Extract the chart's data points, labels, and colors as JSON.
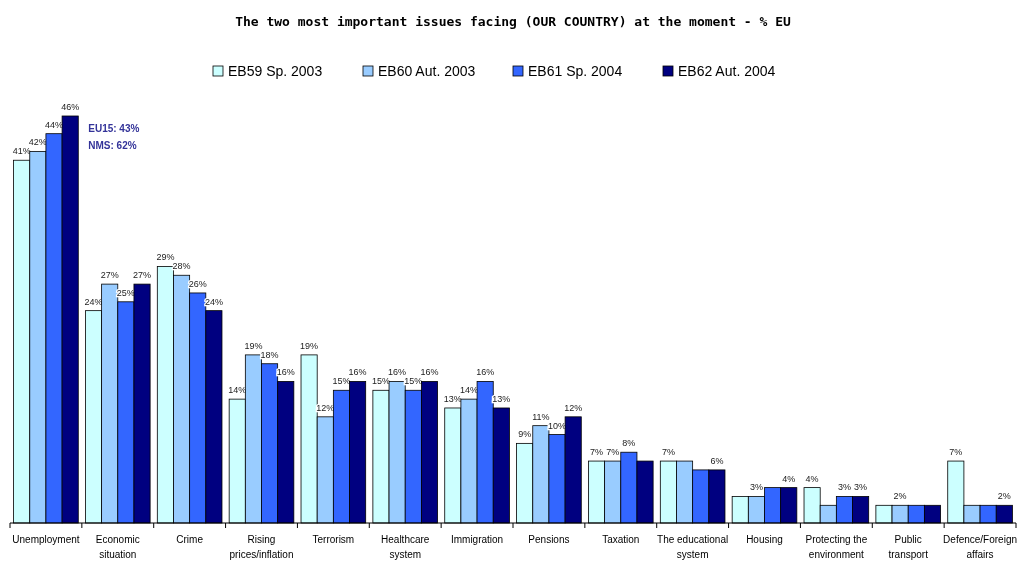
{
  "chart_data": {
    "type": "bar",
    "title": "The two most important issues facing (OUR COUNTRY) at the moment - % EU",
    "categories": [
      "Unemployment",
      "Economic situation",
      "Crime",
      "Rising prices/inflation",
      "Terrorism",
      "Healthcare system",
      "Immigration",
      "Pensions",
      "Taxation",
      "The educational system",
      "Housing",
      "Protecting the environment",
      "Public transport",
      "Defence/Foreign affairs"
    ],
    "series": [
      {
        "name": "EB59 Sp. 2003",
        "color": "#ccffff",
        "values": [
          41,
          24,
          29,
          14,
          19,
          15,
          13,
          9,
          7,
          7,
          3,
          4,
          2,
          7
        ],
        "value_labels": [
          "41%",
          "24%",
          "29%",
          "14%",
          "19%",
          "15%",
          "13%",
          "9%",
          "7%",
          "7%",
          null,
          "4%",
          null,
          "7%"
        ]
      },
      {
        "name": "EB60 Aut. 2003",
        "color": "#99ccff",
        "values": [
          42,
          27,
          28,
          19,
          12,
          16,
          14,
          11,
          7,
          7,
          3,
          2,
          2,
          2
        ],
        "value_labels": [
          "42%",
          "27%",
          "28%",
          "19%",
          "12%",
          "16%",
          "14%",
          "11%",
          "7%",
          null,
          "3%",
          null,
          "2%",
          null
        ]
      },
      {
        "name": "EB61 Sp. 2004",
        "color": "#3366ff",
        "values": [
          44,
          25,
          26,
          18,
          15,
          15,
          16,
          10,
          8,
          6,
          4,
          3,
          2,
          2
        ],
        "value_labels": [
          "44%",
          "25%",
          "26%",
          "18%",
          "15%",
          "15%",
          "16%",
          "10%",
          "8%",
          null,
          null,
          "3%",
          null,
          null
        ]
      },
      {
        "name": "EB62 Aut. 2004",
        "color": "#000080",
        "values": [
          46,
          27,
          24,
          16,
          16,
          16,
          13,
          12,
          7,
          6,
          4,
          3,
          2,
          2
        ],
        "value_labels": [
          "46%",
          "27%",
          "24%",
          "16%",
          "16%",
          "16%",
          "13%",
          "12%",
          null,
          "6%",
          "4%",
          "3%",
          null,
          "2%"
        ]
      }
    ],
    "annotations": [
      "EU15: 43%",
      "NMS: 62%"
    ],
    "legend": "top"
  }
}
